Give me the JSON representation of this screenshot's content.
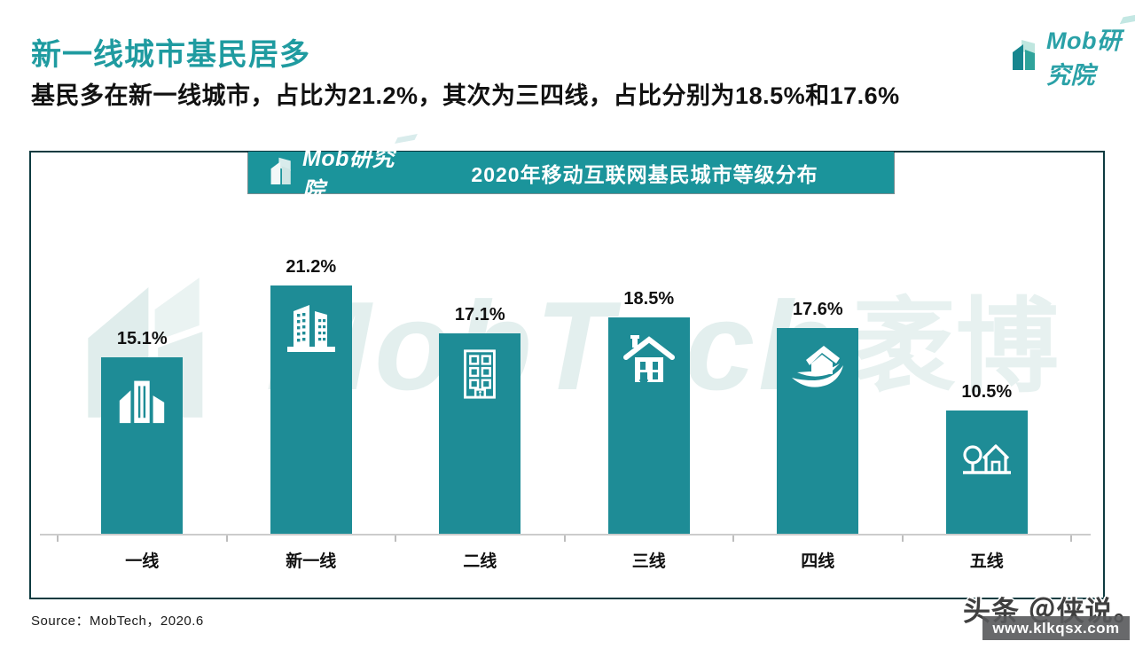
{
  "page": {
    "title": "新一线城市基民居多",
    "subtitle": "基民多在新一线城市，占比为21.2%，其次为三四线，占比分别为18.5%和17.6%",
    "source": "Source：MobTech，2020.6"
  },
  "brand": {
    "name": "Mob研究院"
  },
  "chart_header": {
    "logo_text": "Mob研究院",
    "title": "2020年移动互联网基民城市等级分布"
  },
  "background_watermark": {
    "latin": "MobTech",
    "cjk": "袤博"
  },
  "chart_data": {
    "type": "bar",
    "title": "2020年移动互联网基民城市等级分布",
    "categories": [
      "一线",
      "新一线",
      "二线",
      "三线",
      "四线",
      "五线"
    ],
    "values": [
      15.1,
      21.2,
      17.1,
      18.5,
      17.6,
      10.5
    ],
    "unit": "%",
    "ylim": [
      0,
      23
    ],
    "grid": false,
    "legend": "none",
    "bar_color": "#1E8C96",
    "icons": [
      "city-skyline",
      "office-towers",
      "apartment-building",
      "suburban-house",
      "house-on-leaf",
      "rural-house-tree"
    ]
  },
  "colors": {
    "accent_teal": "#1F9BA0",
    "bar_teal": "#1E8C96",
    "band_teal": "#1B949B",
    "panel_border": "#0E3B40"
  },
  "footer_watermark": {
    "handle": "头条 ＠侠说。",
    "url": "www.klkqsx.com"
  }
}
